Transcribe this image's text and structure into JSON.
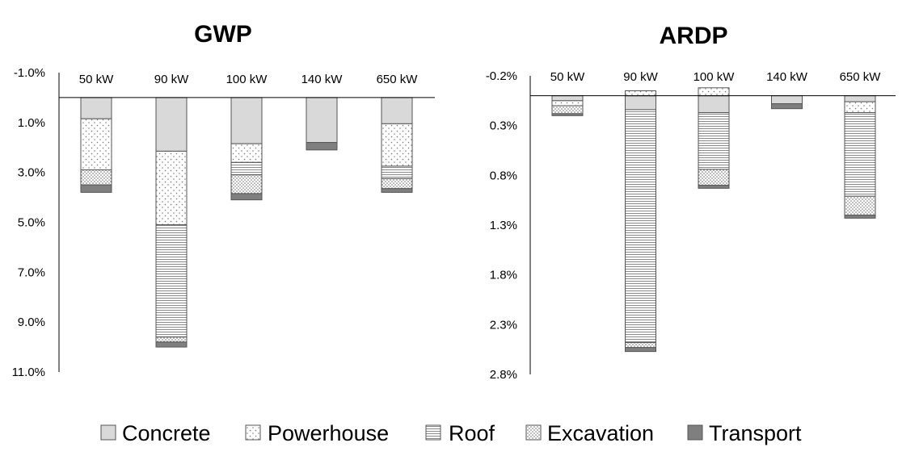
{
  "colors": {
    "concrete": "#d9d9d9",
    "transport": "#7f7f7f",
    "border": "#555555",
    "axis": "#000000"
  },
  "legend": [
    {
      "key": "concrete",
      "label": "Concrete",
      "icon": "solid-gray-swatch"
    },
    {
      "key": "powerhouse",
      "label": "Powerhouse",
      "icon": "sparse-dot-swatch"
    },
    {
      "key": "roof",
      "label": "Roof",
      "icon": "horizontal-line-swatch"
    },
    {
      "key": "excavation",
      "label": "Excavation",
      "icon": "dense-dot-swatch"
    },
    {
      "key": "transport",
      "label": "Transport",
      "icon": "dark-gray-swatch"
    }
  ],
  "chart_data": [
    {
      "type": "bar",
      "stacked": true,
      "title": "GWP",
      "xlabel": "",
      "ylabel": "",
      "y_inverted": true,
      "ylim": [
        -1.0,
        11.0
      ],
      "yticks": [
        -1.0,
        1.0,
        3.0,
        5.0,
        7.0,
        9.0,
        11.0
      ],
      "ytick_labels": [
        "-1.0%",
        "1.0%",
        "3.0%",
        "5.0%",
        "7.0%",
        "9.0%",
        "11.0%"
      ],
      "categories": [
        "50 kW",
        "90 kW",
        "100 kW",
        "140 kW",
        "650 kW"
      ],
      "series": [
        {
          "name": "Concrete",
          "key": "concrete",
          "values": [
            0.85,
            2.15,
            1.85,
            1.8,
            1.05
          ]
        },
        {
          "name": "Powerhouse",
          "key": "powerhouse",
          "values": [
            2.05,
            2.95,
            0.75,
            0.0,
            1.7
          ]
        },
        {
          "name": "Roof",
          "key": "roof",
          "values": [
            0.0,
            4.5,
            0.5,
            0.0,
            0.5
          ]
        },
        {
          "name": "Excavation",
          "key": "excavation",
          "values": [
            0.6,
            0.2,
            0.75,
            0.0,
            0.4
          ]
        },
        {
          "name": "Transport",
          "key": "transport",
          "values": [
            0.3,
            0.2,
            0.25,
            0.3,
            0.15
          ]
        }
      ]
    },
    {
      "type": "bar",
      "stacked": true,
      "title": "ARDP",
      "xlabel": "",
      "ylabel": "",
      "y_inverted": true,
      "ylim": [
        -0.2,
        2.8
      ],
      "yticks": [
        -0.2,
        0.3,
        0.8,
        1.3,
        1.8,
        2.3,
        2.8
      ],
      "ytick_labels": [
        "-0.2%",
        "0.3%",
        "0.8%",
        "1.3%",
        "1.8%",
        "2.3%",
        "2.8%"
      ],
      "categories": [
        "50 kW",
        "90 kW",
        "100 kW",
        "140 kW",
        "650 kW"
      ],
      "series": [
        {
          "name": "Concrete",
          "key": "concrete",
          "values": [
            0.05,
            0.14,
            0.17,
            0.08,
            0.06
          ]
        },
        {
          "name": "Powerhouse",
          "key": "powerhouse",
          "values": [
            0.05,
            -0.05,
            -0.08,
            0.0,
            0.11
          ]
        },
        {
          "name": "Roof",
          "key": "roof",
          "values": [
            0.0,
            2.34,
            0.57,
            0.0,
            0.84
          ]
        },
        {
          "name": "Excavation",
          "key": "excavation",
          "values": [
            0.08,
            0.05,
            0.16,
            0.0,
            0.19
          ]
        },
        {
          "name": "Transport",
          "key": "transport",
          "values": [
            0.02,
            0.04,
            0.03,
            0.05,
            0.03
          ]
        }
      ]
    }
  ]
}
